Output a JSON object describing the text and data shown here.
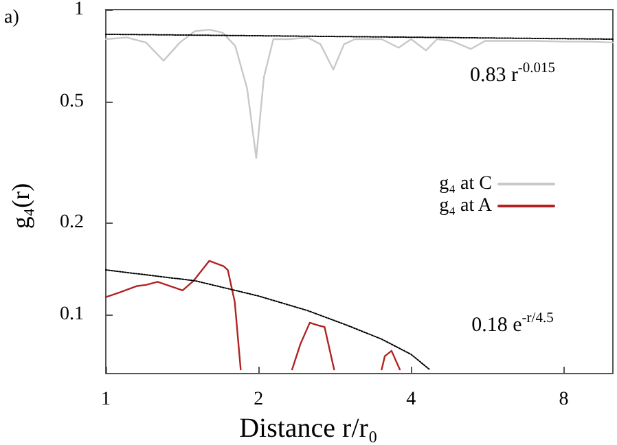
{
  "chart_data": {
    "type": "line",
    "xlabel": "Distance r/r₀",
    "ylabel": "g₄(r)",
    "log": "xy",
    "xlim": [
      1,
      10
    ],
    "ylim": [
      0.064,
      1
    ],
    "xticks": [
      1,
      2,
      4,
      8
    ],
    "yticks": [
      0.1,
      0.2,
      0.5,
      1
    ],
    "grid": false,
    "legend": "right",
    "marker": "none",
    "annotations": [
      "a)",
      "0.83 r$^{-0.015}$",
      "0.18 e$^{-r/4.5}$"
    ],
    "series": [
      {
        "name": "g₄ at C",
        "color": "#c8c8c8",
        "line_style": "solid",
        "x": [
          1,
          1.1,
          1.2,
          1.3,
          1.4,
          1.5,
          1.6,
          1.7,
          1.8,
          1.9,
          1.98,
          2.05,
          2.14,
          2.3,
          2.5,
          2.65,
          2.81,
          2.95,
          3.1,
          3.3,
          3.5,
          3.78,
          4,
          4.28,
          4.5,
          4.8,
          5.25,
          5.6,
          6,
          7,
          8,
          9,
          10
        ],
        "values": [
          0.8,
          0.81,
          0.78,
          0.68,
          0.78,
          0.85,
          0.86,
          0.84,
          0.76,
          0.55,
          0.326,
          0.6,
          0.8,
          0.8,
          0.81,
          0.77,
          0.636,
          0.77,
          0.8,
          0.8,
          0.8,
          0.75,
          0.8,
          0.735,
          0.8,
          0.79,
          0.743,
          0.79,
          0.79,
          0.79,
          0.785,
          0.785,
          0.78
        ]
      },
      {
        "name": "g₄ at A",
        "color": "#b22222",
        "line_style": "solid",
        "x": [
          1,
          1.062,
          1.153,
          1.2,
          1.265,
          1.417,
          1.49,
          1.6,
          1.707,
          1.74,
          1.796,
          1.845,
          2,
          2.33,
          2.42,
          2.525,
          2.63,
          2.7,
          2.82,
          3.2,
          3.5,
          3.55,
          3.66,
          3.77,
          3.8
        ],
        "values": [
          0.114,
          0.118,
          0.124,
          0.125,
          0.128,
          0.12,
          0.129,
          0.15,
          0.144,
          0.14,
          0.11,
          0.066,
          null,
          0.066,
          0.08,
          0.094,
          0.092,
          0.091,
          0.066,
          null,
          0.066,
          0.073,
          0.076,
          0.068,
          0.066
        ]
      },
      {
        "color": "#000000",
        "line_style": "dotted",
        "x": [
          1,
          10
        ],
        "values": [
          0.83,
          0.8
        ]
      },
      {
        "color": "#000000",
        "line_style": "dotted",
        "x": [
          1,
          1.5,
          2,
          2.5,
          3,
          3.5,
          4,
          4.35
        ],
        "values": [
          0.14,
          0.129,
          0.115,
          0.103,
          0.092,
          0.083,
          0.074,
          0.066
        ]
      }
    ]
  }
}
